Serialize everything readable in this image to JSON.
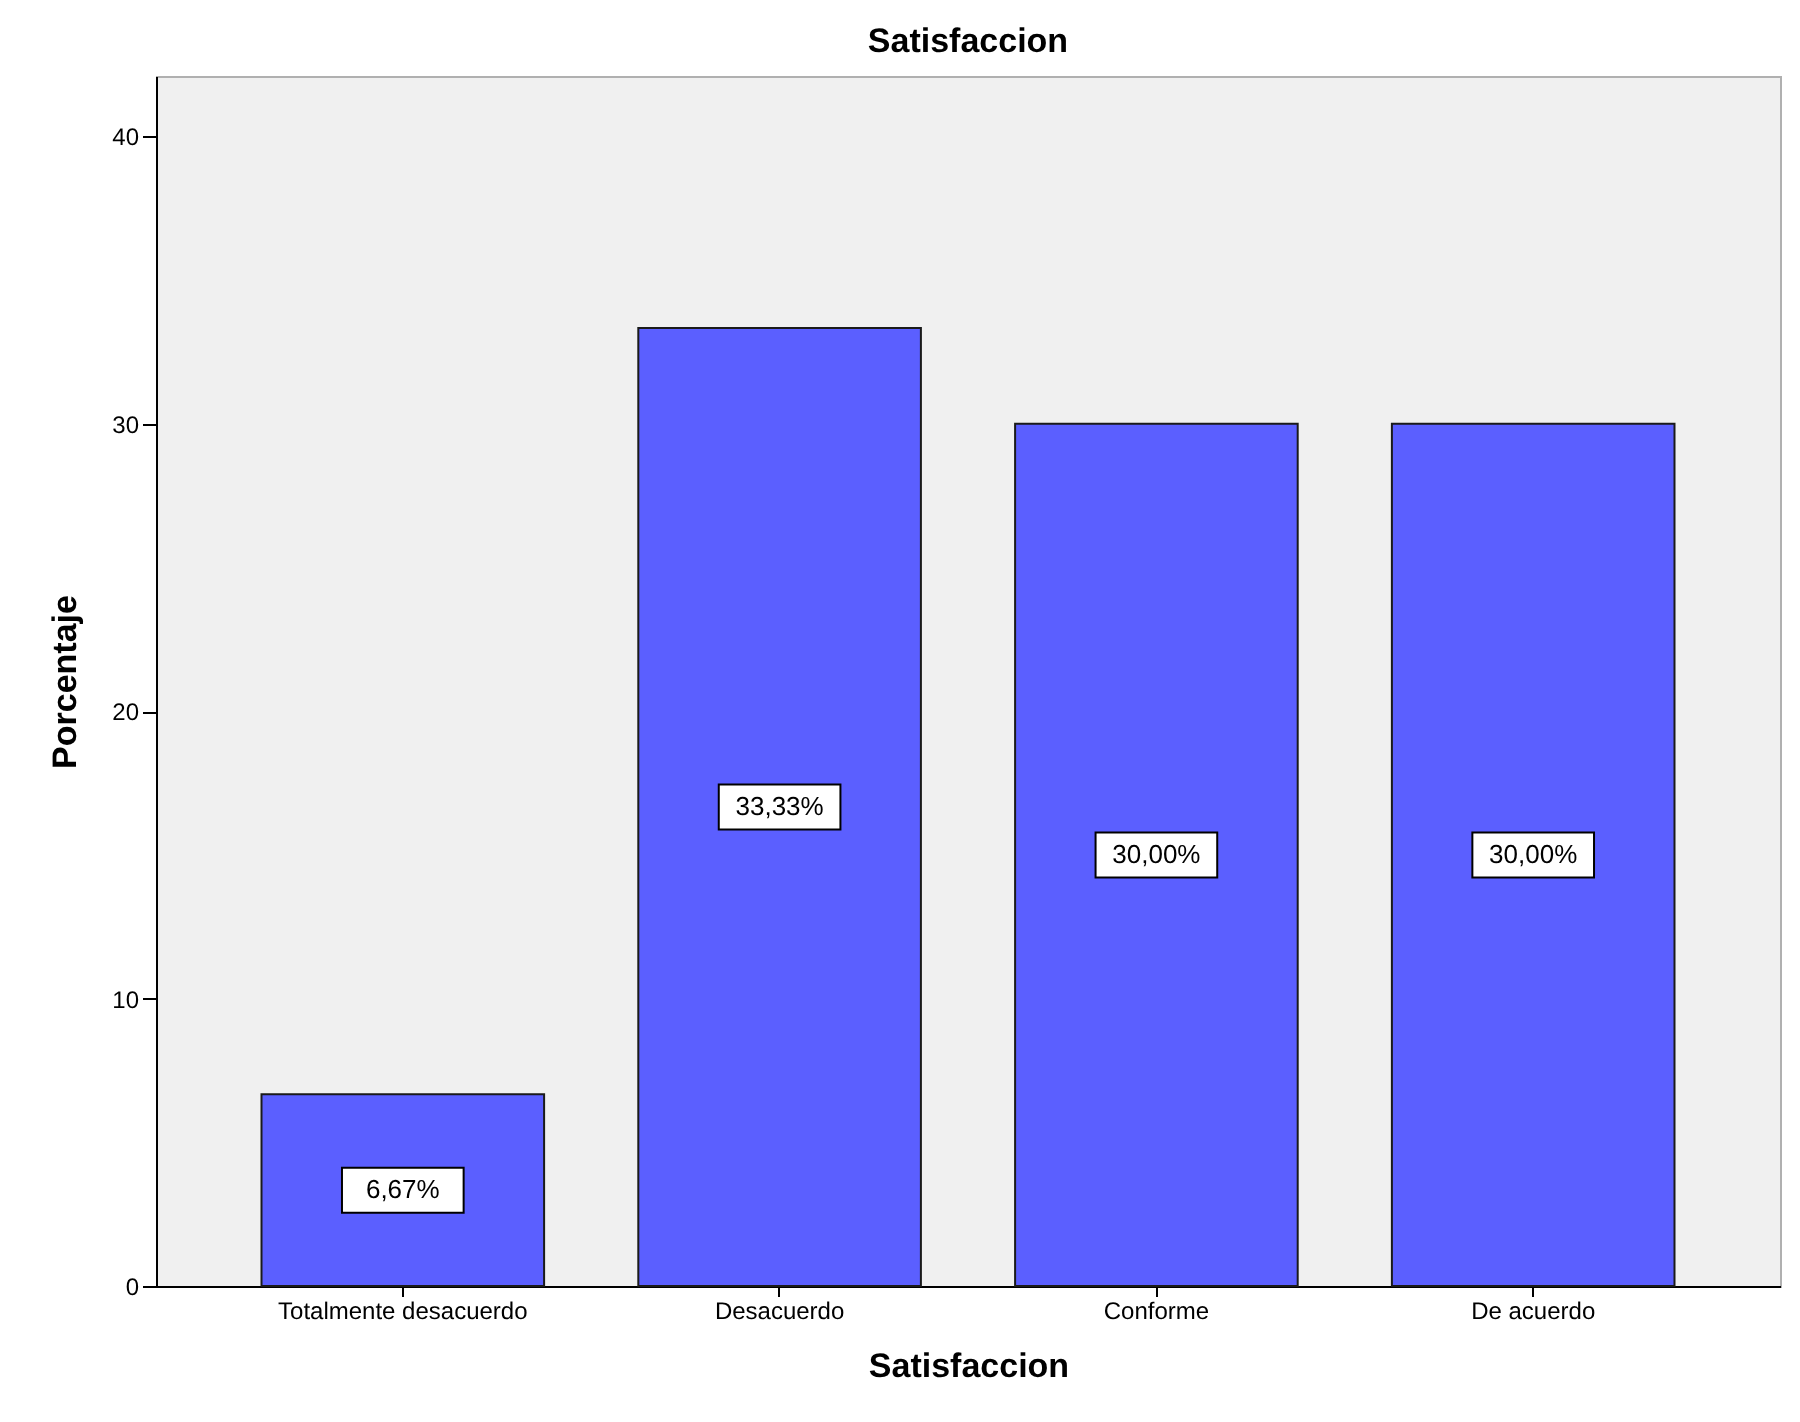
{
  "chart_data": {
    "type": "bar",
    "title": "Satisfaccion",
    "xlabel": "Satisfaccion",
    "ylabel": "Porcentaje",
    "categories": [
      "Totalmente desacuerdo",
      "Desacuerdo",
      "Conforme",
      "De acuerdo"
    ],
    "values": [
      6.67,
      33.33,
      30.0,
      30.0
    ],
    "value_labels": [
      "6,67%",
      "33,33%",
      "30,00%",
      "30,00%"
    ],
    "color": "#5b5fff",
    "ylim": [
      0,
      42.1
    ],
    "yticks": [
      0,
      10,
      20,
      30,
      40
    ],
    "grid": false
  }
}
